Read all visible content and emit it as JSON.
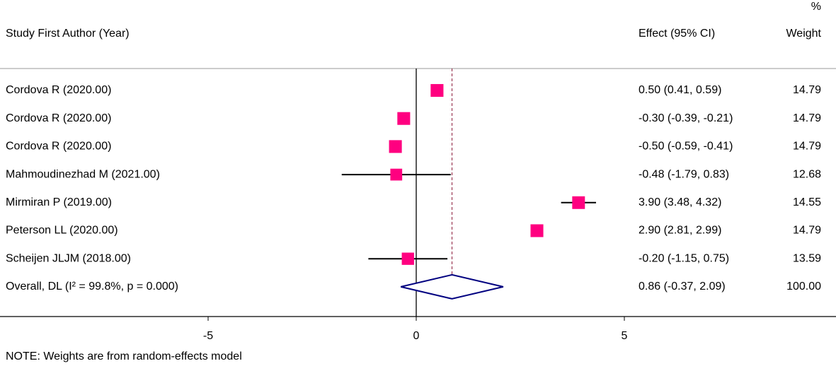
{
  "chart_data": {
    "type": "forest",
    "header": {
      "study": "Study First Author (Year)",
      "effect": "Effect (95% CI)",
      "weight_top": "%",
      "weight": "Weight"
    },
    "studies": [
      {
        "label": "Cordova R (2020.00)",
        "effect": 0.5,
        "lower": 0.41,
        "upper": 0.59,
        "ci_label": "0.50 (0.41, 0.59)",
        "weight": 14.79
      },
      {
        "label": "Cordova R (2020.00)",
        "effect": -0.3,
        "lower": -0.39,
        "upper": -0.21,
        "ci_label": "-0.30 (-0.39, -0.21)",
        "weight": 14.79
      },
      {
        "label": "Cordova R (2020.00)",
        "effect": -0.5,
        "lower": -0.59,
        "upper": -0.41,
        "ci_label": "-0.50 (-0.59, -0.41)",
        "weight": 14.79
      },
      {
        "label": "Mahmoudinezhad M (2021.00)",
        "effect": -0.48,
        "lower": -1.79,
        "upper": 0.83,
        "ci_label": "-0.48 (-1.79, 0.83)",
        "weight": 12.68
      },
      {
        "label": "Mirmiran P (2019.00)",
        "effect": 3.9,
        "lower": 3.48,
        "upper": 4.32,
        "ci_label": "3.90 (3.48, 4.32)",
        "weight": 14.55
      },
      {
        "label": "Peterson LL (2020.00)",
        "effect": 2.9,
        "lower": 2.81,
        "upper": 2.99,
        "ci_label": "2.90 (2.81, 2.99)",
        "weight": 14.79
      },
      {
        "label": "Scheijen JLJM (2018.00)",
        "effect": -0.2,
        "lower": -1.15,
        "upper": 0.75,
        "ci_label": "-0.20 (-1.15, 0.75)",
        "weight": 13.59
      }
    ],
    "overall": {
      "label": "Overall, DL (I² = 99.8%, p = 0.000)",
      "effect": 0.86,
      "lower": -0.37,
      "upper": 2.09,
      "ci_label": "0.86 (-0.37, 2.09)",
      "weight": {
        "value": 100,
        "label": "100.00"
      }
    },
    "xlim": [
      -10,
      10
    ],
    "xticks": [
      -5,
      0,
      5
    ],
    "marker_color": "#ff0080",
    "diamond_color": "#000080",
    "reference_color": "#8b1a3a",
    "note": "NOTE: Weights are from random-effects model"
  }
}
